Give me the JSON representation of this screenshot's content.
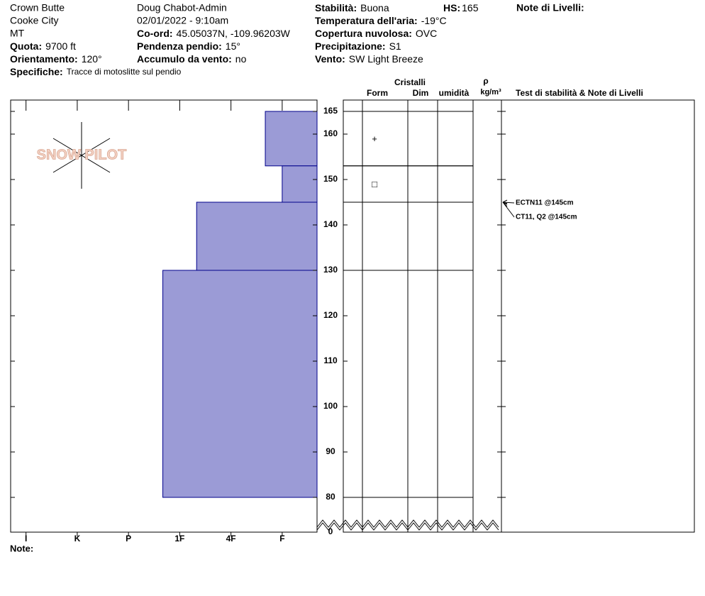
{
  "header": {
    "lines": [
      "Crown Butte",
      "Cooke City",
      "MT",
      "Doug Chabot-Admin",
      "02/01/2022 - 9:10am"
    ],
    "fields": [
      {
        "label": "Quota:",
        "value": "9700 ft"
      },
      {
        "label": "Orientamento:",
        "value": "120°"
      },
      {
        "label": "Specifiche:",
        "value": "Tracce di motoslitte sul pendio"
      },
      {
        "label": "Co-ord:",
        "value": "45.05037N, -109.96203W"
      },
      {
        "label": "Pendenza pendio:",
        "value": "15°"
      },
      {
        "label": "Accumulo da vento:",
        "value": "no"
      },
      {
        "label": "Stabilità:",
        "value": "Buona"
      },
      {
        "label": "Temperatura dell'aria:",
        "value": "-19°C"
      },
      {
        "label": "Copertura nuvolosa:",
        "value": "OVC"
      },
      {
        "label": "Precipitazione:",
        "value": "S1"
      },
      {
        "label": "Vento:",
        "value": "SW Light Breeze"
      },
      {
        "label": "HS:",
        "value": "165"
      }
    ],
    "notes_title": "Note di Livelli:"
  },
  "logo": "SNOW PILOT",
  "columns": {
    "crystals": "Cristalli",
    "form": "Form",
    "size": "Dim",
    "moisture": "umidità",
    "rho": "ρ",
    "density_unit": "kg/m³",
    "tests": "Test di stabilità & Note di Livelli"
  },
  "note_label": "Note:",
  "chart_data": {
    "type": "hardness-profile",
    "xlim": [
      6.3,
      0.32
    ],
    "xticks": [
      {
        "value": 6,
        "label": "I"
      },
      {
        "value": 5,
        "label": "K"
      },
      {
        "value": 4,
        "label": "P"
      },
      {
        "value": 3,
        "label": "1F"
      },
      {
        "value": 2,
        "label": "4F"
      },
      {
        "value": 1,
        "label": "F"
      }
    ],
    "ylim": [
      80,
      165
    ],
    "yticks": [
      0,
      80,
      90,
      100,
      110,
      120,
      130,
      140,
      150,
      160,
      165
    ],
    "axis_break": true,
    "color": "#9b9bd6",
    "layers": [
      {
        "top": 165,
        "bottom": 153,
        "hardness": 1.33,
        "form": "+"
      },
      {
        "top": 153,
        "bottom": 145,
        "hardness": 1,
        "form": "□"
      },
      {
        "top": 145,
        "bottom": 130,
        "hardness": 2.67
      },
      {
        "top": 130,
        "bottom": 80,
        "hardness": 3.33
      }
    ],
    "tests": [
      {
        "label": "ECTN11 @145cm",
        "depth": 145
      },
      {
        "label": "CT11, Q2 @145cm",
        "depth": 145
      }
    ]
  }
}
